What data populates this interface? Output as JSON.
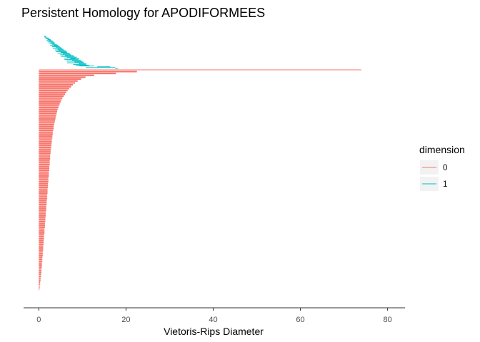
{
  "chart_data": {
    "type": "barcode",
    "title": "Persistent Homology for APODIFORMEES",
    "xlabel": "Vietoris-Rips Diameter",
    "ylabel": "",
    "xlim": [
      -3.5,
      84
    ],
    "xticks": [
      0,
      20,
      40,
      60,
      80
    ],
    "grid": false,
    "legend": {
      "title": "dimension",
      "position": "right",
      "entries": [
        {
          "label": "0",
          "color": "#F8766D"
        },
        {
          "label": "1",
          "color": "#00BFC4"
        }
      ]
    },
    "series": [
      {
        "name": "0",
        "color": "#F8766D",
        "bars": [
          [
            0,
            74
          ],
          [
            0,
            22.5
          ],
          [
            0,
            17.7
          ],
          [
            0,
            12.7
          ],
          [
            0,
            10.7
          ],
          [
            0,
            9.7
          ],
          [
            0,
            8.9
          ],
          [
            0,
            8.3
          ],
          [
            0,
            7.8
          ],
          [
            0,
            7.4
          ],
          [
            0,
            7.0
          ],
          [
            0,
            6.6
          ],
          [
            0,
            6.3
          ],
          [
            0,
            6.0
          ],
          [
            0,
            5.7
          ],
          [
            0,
            5.4
          ],
          [
            0,
            5.2
          ],
          [
            0,
            5.0
          ],
          [
            0,
            4.8
          ],
          [
            0,
            4.6
          ],
          [
            0,
            4.5
          ],
          [
            0,
            4.3
          ],
          [
            0,
            4.2
          ],
          [
            0,
            4.1
          ],
          [
            0,
            4.0
          ],
          [
            0,
            3.9
          ],
          [
            0,
            3.8
          ],
          [
            0,
            3.7
          ],
          [
            0,
            3.6
          ],
          [
            0,
            3.5
          ],
          [
            0,
            3.4
          ],
          [
            0,
            3.4
          ],
          [
            0,
            3.3
          ],
          [
            0,
            3.2
          ],
          [
            0,
            3.2
          ],
          [
            0,
            3.1
          ],
          [
            0,
            3.1
          ],
          [
            0,
            3.0
          ],
          [
            0,
            3.0
          ],
          [
            0,
            2.9
          ],
          [
            0,
            2.9
          ],
          [
            0,
            2.8
          ],
          [
            0,
            2.8
          ],
          [
            0,
            2.7
          ],
          [
            0,
            2.7
          ],
          [
            0,
            2.6
          ],
          [
            0,
            2.6
          ],
          [
            0,
            2.6
          ],
          [
            0,
            2.5
          ],
          [
            0,
            2.5
          ],
          [
            0,
            2.5
          ],
          [
            0,
            2.4
          ],
          [
            0,
            2.4
          ],
          [
            0,
            2.4
          ],
          [
            0,
            2.3
          ],
          [
            0,
            2.3
          ],
          [
            0,
            2.3
          ],
          [
            0,
            2.2
          ],
          [
            0,
            2.2
          ],
          [
            0,
            2.2
          ],
          [
            0,
            2.1
          ],
          [
            0,
            2.1
          ],
          [
            0,
            2.1
          ],
          [
            0,
            2.0
          ],
          [
            0,
            2.0
          ],
          [
            0,
            2.0
          ],
          [
            0,
            1.9
          ],
          [
            0,
            1.9
          ],
          [
            0,
            1.9
          ],
          [
            0,
            1.8
          ],
          [
            0,
            1.8
          ],
          [
            0,
            1.8
          ],
          [
            0,
            1.7
          ],
          [
            0,
            1.7
          ],
          [
            0,
            1.7
          ],
          [
            0,
            1.6
          ],
          [
            0,
            1.6
          ],
          [
            0,
            1.6
          ],
          [
            0,
            1.5
          ],
          [
            0,
            1.5
          ],
          [
            0,
            1.5
          ],
          [
            0,
            1.4
          ],
          [
            0,
            1.4
          ],
          [
            0,
            1.4
          ],
          [
            0,
            1.3
          ],
          [
            0,
            1.3
          ],
          [
            0,
            1.3
          ],
          [
            0,
            1.2
          ],
          [
            0,
            1.2
          ],
          [
            0,
            1.2
          ],
          [
            0,
            1.1
          ],
          [
            0,
            1.1
          ],
          [
            0,
            1.1
          ],
          [
            0,
            1.0
          ],
          [
            0,
            1.0
          ],
          [
            0,
            1.0
          ],
          [
            0,
            0.9
          ],
          [
            0,
            0.9
          ],
          [
            0,
            0.9
          ],
          [
            0,
            0.8
          ],
          [
            0,
            0.8
          ],
          [
            0,
            0.8
          ],
          [
            0,
            0.7
          ],
          [
            0,
            0.7
          ],
          [
            0,
            0.7
          ],
          [
            0,
            0.6
          ],
          [
            0,
            0.6
          ],
          [
            0,
            0.6
          ],
          [
            0,
            0.5
          ],
          [
            0,
            0.5
          ],
          [
            0,
            0.4
          ],
          [
            0,
            0.4
          ],
          [
            0,
            0.3
          ],
          [
            0,
            0.3
          ],
          [
            0,
            0.2
          ],
          [
            0,
            0.2
          ],
          [
            0,
            0.1
          ]
        ]
      },
      {
        "name": "1",
        "color": "#00BFC4",
        "bars": [
          [
            17.5,
            18.2
          ],
          [
            10.8,
            17.5
          ],
          [
            13.4,
            16.4
          ],
          [
            9.3,
            12.6
          ],
          [
            8.5,
            11.5
          ],
          [
            7.9,
            10.9
          ],
          [
            9.1,
            10.9
          ],
          [
            6.5,
            10.4
          ],
          [
            8.2,
            10.2
          ],
          [
            6.4,
            9.9
          ],
          [
            7.6,
            9.6
          ],
          [
            5.9,
            9.1
          ],
          [
            7.2,
            9.3
          ],
          [
            5.8,
            8.4
          ],
          [
            6.4,
            8.8
          ],
          [
            5.1,
            8.2
          ],
          [
            6.0,
            7.9
          ],
          [
            4.9,
            7.4
          ],
          [
            5.5,
            7.2
          ],
          [
            4.3,
            6.9
          ],
          [
            5.0,
            6.5
          ],
          [
            3.9,
            6.4
          ],
          [
            4.5,
            6.2
          ],
          [
            3.7,
            5.8
          ],
          [
            4.3,
            5.6
          ],
          [
            3.2,
            5.3
          ],
          [
            3.9,
            5.1
          ],
          [
            3.0,
            4.8
          ],
          [
            3.4,
            4.5
          ],
          [
            2.6,
            4.4
          ],
          [
            3.1,
            4.1
          ],
          [
            2.4,
            3.7
          ],
          [
            2.8,
            3.6
          ],
          [
            2.0,
            3.4
          ],
          [
            2.4,
            3.2
          ],
          [
            1.8,
            2.9
          ],
          [
            2.0,
            2.7
          ],
          [
            1.7,
            2.4
          ],
          [
            1.5,
            2.2
          ],
          [
            1.3,
            1.8
          ],
          [
            1.2,
            1.6
          ]
        ]
      }
    ]
  }
}
